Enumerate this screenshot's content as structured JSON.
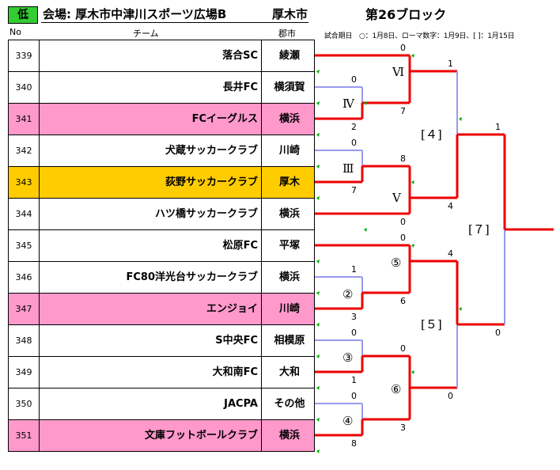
{
  "header": {
    "badge": "低",
    "venue": "会場: 厚木市中津川スポーツ広場B",
    "city": "厚木市",
    "block_title": "第26ブロック",
    "col_no": "No",
    "col_team": "チーム",
    "col_area": "郡市",
    "legend": "試合期日　○：1月8日、ローマ数字：1月9日、[ ]：1月15日"
  },
  "teams": [
    {
      "no": "339",
      "name": "落合SC",
      "area": "綾瀬",
      "highlight": "none"
    },
    {
      "no": "340",
      "name": "長井FC",
      "area": "横須賀",
      "highlight": "none"
    },
    {
      "no": "341",
      "name": "FCイーグルス",
      "area": "横浜",
      "highlight": "pink"
    },
    {
      "no": "342",
      "name": "犬蔵サッカークラブ",
      "area": "川崎",
      "highlight": "none"
    },
    {
      "no": "343",
      "name": "荻野サッカークラブ",
      "area": "厚木",
      "highlight": "gold"
    },
    {
      "no": "344",
      "name": "ハツ橋サッカークラブ",
      "area": "横浜",
      "highlight": "none"
    },
    {
      "no": "345",
      "name": "松原FC",
      "area": "平塚",
      "highlight": "none"
    },
    {
      "no": "346",
      "name": "FC80洋光台サッカークラブ",
      "area": "横浜",
      "highlight": "none"
    },
    {
      "no": "347",
      "name": "エンジョイ",
      "area": "川崎",
      "highlight": "pink"
    },
    {
      "no": "348",
      "name": "S中央FC",
      "area": "相模原",
      "highlight": "none"
    },
    {
      "no": "349",
      "name": "大和南FC",
      "area": "大和",
      "highlight": "none"
    },
    {
      "no": "350",
      "name": "JACPA",
      "area": "その他",
      "highlight": "none"
    },
    {
      "no": "351",
      "name": "文庫フットボールクラブ",
      "area": "横浜",
      "highlight": "pink"
    }
  ],
  "colors": {
    "winner_line": "#ee0000",
    "loser_line": "#9999ee",
    "marker": "#00aa00",
    "pink_row": "#ff99cc",
    "gold_row": "#ffcc00",
    "badge": "#33cc33"
  },
  "rounds": {
    "r1": [
      "Ⅳ",
      "Ⅲ",
      "②",
      "③",
      "④"
    ],
    "r2": [
      "Ⅵ",
      "Ⅴ",
      "⑤",
      "⑥"
    ],
    "r3": [
      "[４]",
      "[５]"
    ],
    "final": "[７]"
  },
  "scores": {
    "IV": [
      "0",
      "2"
    ],
    "III": [
      "0",
      "7"
    ],
    "VI": [
      "0",
      "7"
    ],
    "V": [
      "8",
      "0"
    ],
    "two": [
      "1",
      "3"
    ],
    "three": [
      "0",
      "1"
    ],
    "four": [
      "0",
      "8"
    ],
    "five": [
      "0",
      "6"
    ],
    "six": [
      "0",
      "3"
    ],
    "sq4": [
      "1",
      "4"
    ],
    "sq5": [
      "4",
      "0"
    ],
    "sq7": [
      "1",
      "0"
    ]
  }
}
